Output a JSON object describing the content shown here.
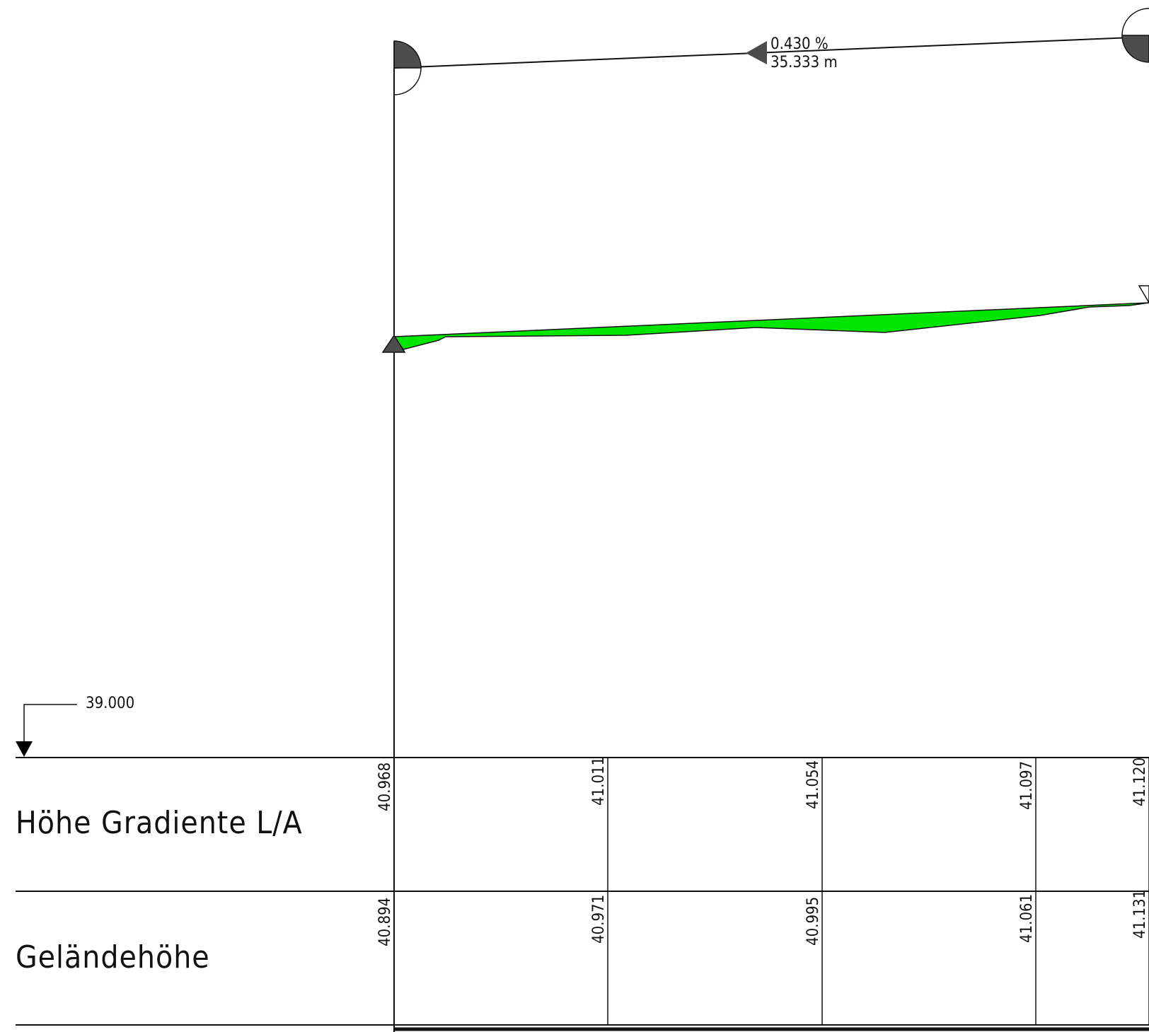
{
  "profile": {
    "pipe": {
      "slope_label": "0.430 %",
      "length_label": "35.333 m"
    },
    "datum": {
      "label": "39.000"
    },
    "stations": [
      {
        "hoehe_gradiente": "40.968",
        "gelaendehoehe": "40.894"
      },
      {
        "hoehe_gradiente": "41.011",
        "gelaendehoehe": "40.971"
      },
      {
        "hoehe_gradiente": "41.054",
        "gelaendehoehe": "40.995"
      },
      {
        "hoehe_gradiente": "41.097",
        "gelaendehoehe": "41.061"
      },
      {
        "hoehe_gradiente": "41.120",
        "gelaendehoehe": "41.131"
      }
    ],
    "rows": [
      {
        "label": "Höhe Gradiente L/A"
      },
      {
        "label": "Geländehöhe"
      }
    ],
    "colors": {
      "terrain_fill": "#00e600",
      "line": "#111111",
      "symbol_dark": "#4d4d4d"
    }
  }
}
